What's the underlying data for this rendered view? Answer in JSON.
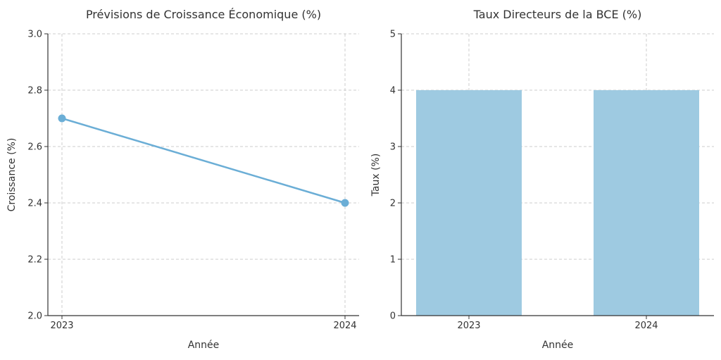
{
  "chart_data": [
    {
      "type": "line",
      "title": "Prévisions de Croissance Économique (%)",
      "xlabel": "Année",
      "ylabel": "Croissance (%)",
      "categories": [
        "2023",
        "2024"
      ],
      "values": [
        2.7,
        2.4
      ],
      "ylim": [
        2.0,
        3.0
      ],
      "yticks": [
        "2.0",
        "2.2",
        "2.4",
        "2.6",
        "2.8",
        "3.0"
      ],
      "grid": true,
      "color": "#6baed6"
    },
    {
      "type": "bar",
      "title": "Taux Directeurs de la BCE (%)",
      "xlabel": "Année",
      "ylabel": "Taux (%)",
      "categories": [
        "2023",
        "2024"
      ],
      "values": [
        4.0,
        4.0
      ],
      "ylim": [
        0,
        5
      ],
      "yticks": [
        "0",
        "1",
        "2",
        "3",
        "4",
        "5"
      ],
      "grid": true,
      "color": "#9ecae1"
    }
  ]
}
